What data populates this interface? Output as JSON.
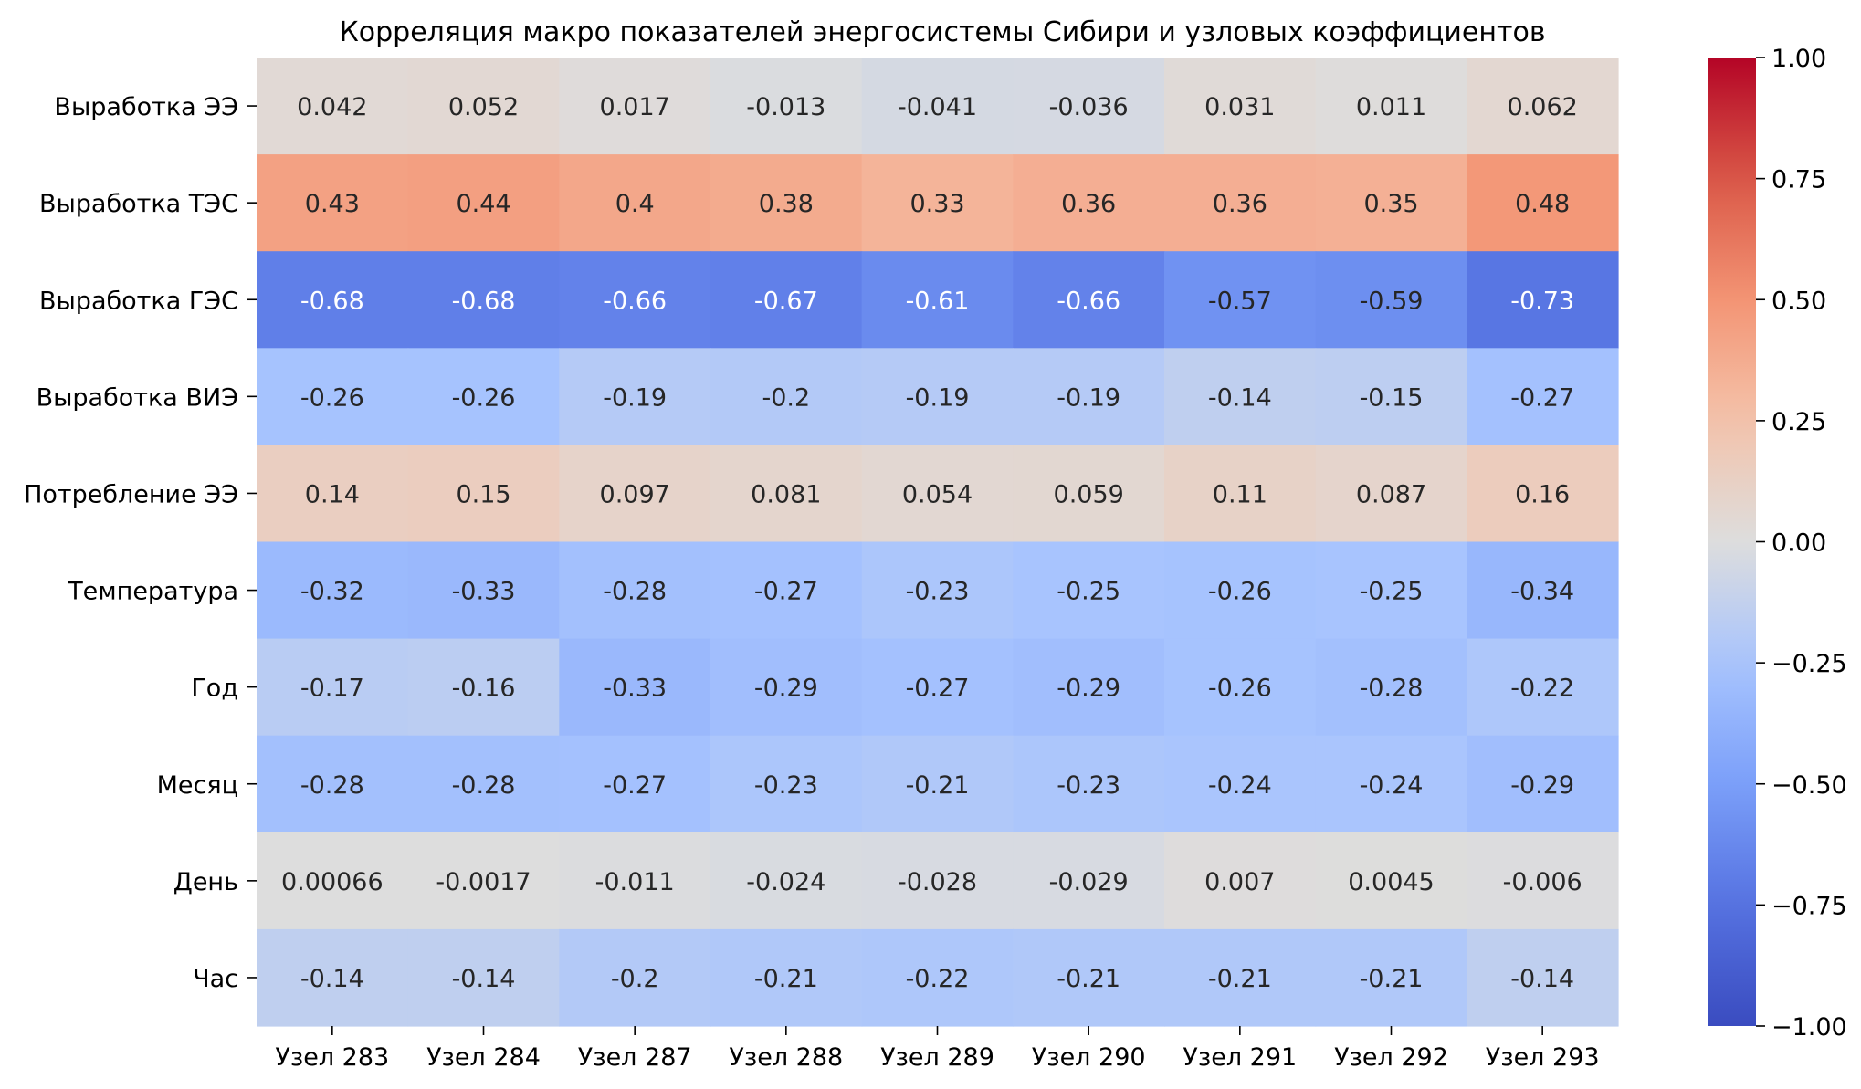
{
  "chart_data": {
    "type": "heatmap",
    "title": "Корреляция макро показателей энергосистемы Сибири и узловых коэффициентов",
    "xlabel": "",
    "ylabel": "",
    "columns": [
      "Узел 283",
      "Узел 284",
      "Узел 287",
      "Узел 288",
      "Узел 289",
      "Узел 290",
      "Узел 291",
      "Узел 292",
      "Узел 293"
    ],
    "rows": [
      "Выработка ЭЭ",
      "Выработка ТЭС",
      "Выработка ГЭС",
      "Выработка ВИЭ",
      "Потребление ЭЭ",
      "Температура",
      "Год",
      "Месяц",
      "День",
      "Час"
    ],
    "values": [
      [
        0.042,
        0.052,
        0.017,
        -0.013,
        -0.041,
        -0.036,
        0.031,
        0.011,
        0.062
      ],
      [
        0.43,
        0.44,
        0.4,
        0.38,
        0.33,
        0.36,
        0.36,
        0.35,
        0.48
      ],
      [
        -0.68,
        -0.68,
        -0.66,
        -0.67,
        -0.61,
        -0.66,
        -0.57,
        -0.59,
        -0.73
      ],
      [
        -0.26,
        -0.26,
        -0.19,
        -0.2,
        -0.19,
        -0.19,
        -0.14,
        -0.15,
        -0.27
      ],
      [
        0.14,
        0.15,
        0.097,
        0.081,
        0.054,
        0.059,
        0.11,
        0.087,
        0.16
      ],
      [
        -0.32,
        -0.33,
        -0.28,
        -0.27,
        -0.23,
        -0.25,
        -0.26,
        -0.25,
        -0.34
      ],
      [
        -0.17,
        -0.16,
        -0.33,
        -0.29,
        -0.27,
        -0.29,
        -0.26,
        -0.28,
        -0.22
      ],
      [
        -0.28,
        -0.28,
        -0.27,
        -0.23,
        -0.21,
        -0.23,
        -0.24,
        -0.24,
        -0.29
      ],
      [
        0.00066,
        -0.0017,
        -0.011,
        -0.024,
        -0.028,
        -0.029,
        0.007,
        0.0045,
        -0.006
      ],
      [
        -0.14,
        -0.14,
        -0.2,
        -0.21,
        -0.22,
        -0.21,
        -0.21,
        -0.21,
        -0.14
      ]
    ],
    "cell_labels": [
      [
        "0.042",
        "0.052",
        "0.017",
        "-0.013",
        "-0.041",
        "-0.036",
        "0.031",
        "0.011",
        "0.062"
      ],
      [
        "0.43",
        "0.44",
        "0.4",
        "0.38",
        "0.33",
        "0.36",
        "0.36",
        "0.35",
        "0.48"
      ],
      [
        "-0.68",
        "-0.68",
        "-0.66",
        "-0.67",
        "-0.61",
        "-0.66",
        "-0.57",
        "-0.59",
        "-0.73"
      ],
      [
        "-0.26",
        "-0.26",
        "-0.19",
        "-0.2",
        "-0.19",
        "-0.19",
        "-0.14",
        "-0.15",
        "-0.27"
      ],
      [
        "0.14",
        "0.15",
        "0.097",
        "0.081",
        "0.054",
        "0.059",
        "0.11",
        "0.087",
        "0.16"
      ],
      [
        "-0.32",
        "-0.33",
        "-0.28",
        "-0.27",
        "-0.23",
        "-0.25",
        "-0.26",
        "-0.25",
        "-0.34"
      ],
      [
        "-0.17",
        "-0.16",
        "-0.33",
        "-0.29",
        "-0.27",
        "-0.29",
        "-0.26",
        "-0.28",
        "-0.22"
      ],
      [
        "-0.28",
        "-0.28",
        "-0.27",
        "-0.23",
        "-0.21",
        "-0.23",
        "-0.24",
        "-0.24",
        "-0.29"
      ],
      [
        "0.00066",
        "-0.0017",
        "-0.011",
        "-0.024",
        "-0.028",
        "-0.029",
        "0.007",
        "0.0045",
        "-0.006"
      ],
      [
        "-0.14",
        "-0.14",
        "-0.2",
        "-0.21",
        "-0.22",
        "-0.21",
        "-0.21",
        "-0.21",
        "-0.14"
      ]
    ],
    "colormap": "coolwarm",
    "vmin": -1.0,
    "vmax": 1.0,
    "colorbar": {
      "ticks": [
        -1.0,
        -0.75,
        -0.5,
        -0.25,
        0.0,
        0.25,
        0.5,
        0.75,
        1.0
      ],
      "tick_labels": [
        "−1.00",
        "−0.75",
        "−0.50",
        "−0.25",
        "0.00",
        "0.25",
        "0.50",
        "0.75",
        "1.00"
      ],
      "placement": "right"
    }
  }
}
